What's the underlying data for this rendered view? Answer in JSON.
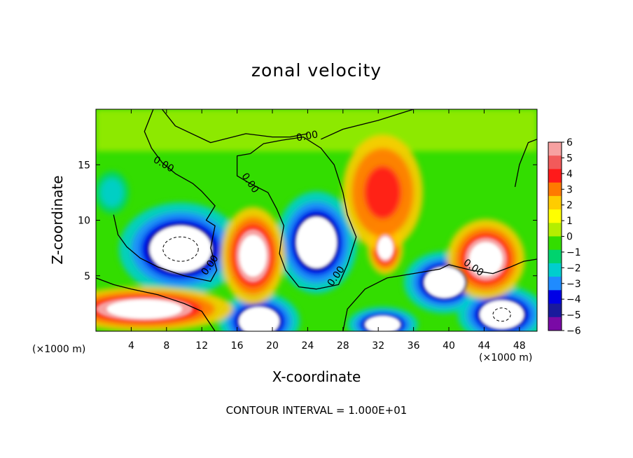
{
  "chart_data": {
    "type": "heatmap",
    "title": "zonal velocity",
    "xlabel": "X-coordinate",
    "ylabel": "Z-coordinate",
    "x_unit_label": "(×1000 m)",
    "x_ticks": [
      4,
      8,
      12,
      16,
      20,
      24,
      28,
      32,
      36,
      40,
      44,
      48
    ],
    "y_ticks": [
      5,
      10,
      15
    ],
    "xlim": [
      0,
      50
    ],
    "ylim": [
      0,
      20
    ],
    "colorbar": {
      "ticks": [
        "6",
        "5",
        "4",
        "3",
        "2",
        "1",
        "0",
        "−1",
        "−2",
        "−3",
        "−4",
        "−5",
        "−6"
      ],
      "range": [
        -6,
        6
      ],
      "colors": [
        "#f7a1a1",
        "#f25a5a",
        "#ff1a1a",
        "#ff7a00",
        "#ffcc00",
        "#ffff00",
        "#b4ee00",
        "#33dd00",
        "#00d36e",
        "#00cece",
        "#1f8bff",
        "#0000e6",
        "#1a1a9c",
        "#7a0aa6"
      ]
    },
    "contour_labels": [
      "0.00"
    ],
    "contour_interval_text": "CONTOUR INTERVAL = 1.000E+01",
    "features": [
      {
        "kind": "saturated-negative",
        "x": 9.6,
        "z": 7.4,
        "rx": 3.5,
        "rz": 2.1
      },
      {
        "kind": "saturated-negative",
        "x": 25.0,
        "z": 8.0,
        "rx": 2.3,
        "rz": 2.3
      },
      {
        "kind": "saturated-negative",
        "x": 39.5,
        "z": 4.4,
        "rx": 2.3,
        "rz": 1.4
      },
      {
        "kind": "saturated-negative",
        "x": 46.0,
        "z": 1.5,
        "rx": 2.5,
        "rz": 1.3
      },
      {
        "kind": "saturated-negative",
        "x": 18.5,
        "z": 0.9,
        "rx": 2.3,
        "rz": 1.3
      },
      {
        "kind": "saturated-negative",
        "x": 32.5,
        "z": 0.6,
        "rx": 2.0,
        "rz": 0.8
      },
      {
        "kind": "saturated-positive",
        "x": 17.8,
        "z": 6.8,
        "rx": 1.8,
        "rz": 2.2
      },
      {
        "kind": "saturated-positive",
        "x": 32.8,
        "z": 7.5,
        "rx": 1.0,
        "rz": 1.2
      },
      {
        "kind": "saturated-positive",
        "x": 44.2,
        "z": 6.5,
        "rx": 2.2,
        "rz": 1.8
      },
      {
        "kind": "saturated-positive",
        "x": 5.5,
        "z": 2.0,
        "rx": 5.0,
        "rz": 1.0
      },
      {
        "kind": "strong-positive",
        "x": 32.5,
        "z": 12.5,
        "rx": 3.5,
        "rz": 4.0
      },
      {
        "kind": "moderate-negative",
        "x": 1.8,
        "z": 12.5,
        "rx": 1.6,
        "rz": 1.6
      }
    ]
  }
}
